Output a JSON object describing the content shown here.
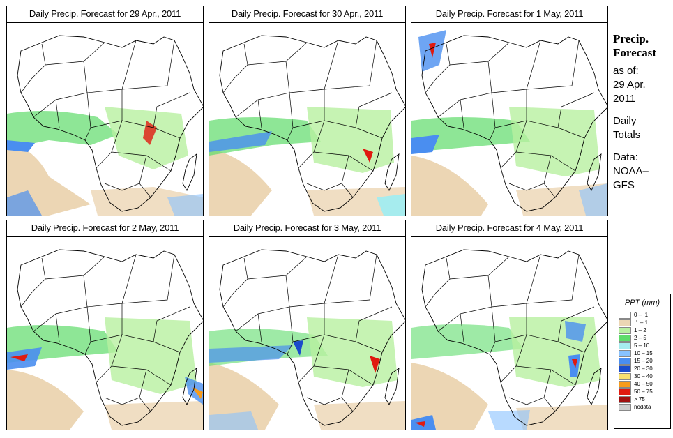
{
  "panels": [
    {
      "title": "Daily Precip. Forecast for  29 Apr., 2011"
    },
    {
      "title": "Daily Precip. Forecast for  30 Apr., 2011"
    },
    {
      "title": "Daily Precip. Forecast for  1 May, 2011"
    },
    {
      "title": "Daily Precip. Forecast for  2 May, 2011"
    },
    {
      "title": "Daily Precip. Forecast for  3 May, 2011"
    },
    {
      "title": "Daily Precip. Forecast for  4 May, 2011"
    }
  ],
  "sidebar": {
    "head1": "Precip.",
    "head2": "Forecast",
    "asof": "as of:",
    "date1": "29 Apr.",
    "date2": "2011",
    "totals1": "Daily",
    "totals2": "Totals",
    "data1": "Data:",
    "data2": "NOAA–",
    "data3": "GFS"
  },
  "legend": {
    "title": "PPT (mm)",
    "items": [
      {
        "label": "0 – .1",
        "color": "#ffffff"
      },
      {
        "label": ".1 – 1",
        "color": "#ecd6b4"
      },
      {
        "label": "1 – 2",
        "color": "#b8f0a0"
      },
      {
        "label": "2 – 5",
        "color": "#5edc6a"
      },
      {
        "label": "5 – 10",
        "color": "#a6ecee"
      },
      {
        "label": "10 – 15",
        "color": "#88c2ff"
      },
      {
        "label": "15 – 20",
        "color": "#4a8ef0"
      },
      {
        "label": "20 – 30",
        "color": "#1a4ccc"
      },
      {
        "label": "30 – 40",
        "color": "#f8e070"
      },
      {
        "label": "40 – 50",
        "color": "#f89c1c"
      },
      {
        "label": "50 – 75",
        "color": "#e01a10"
      },
      {
        "label": "> 75",
        "color": "#a01010"
      },
      {
        "label": "nodata",
        "color": "#cccccc"
      }
    ]
  }
}
